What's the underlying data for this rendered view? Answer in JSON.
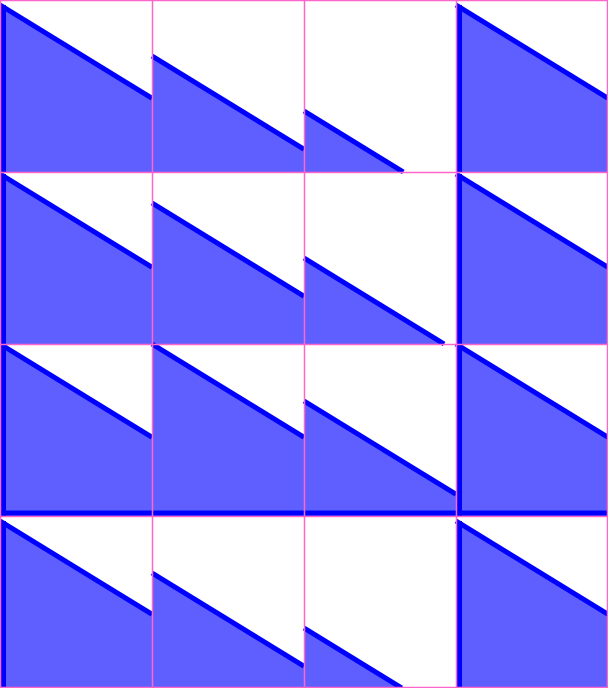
{
  "colors": {
    "background": "#ffffff",
    "triangle_fill": "#5f5fff",
    "triangle_stroke": "#0000ff",
    "grid_line": "#ff66cc"
  },
  "grid": {
    "rows": 4,
    "cols": 4
  }
}
